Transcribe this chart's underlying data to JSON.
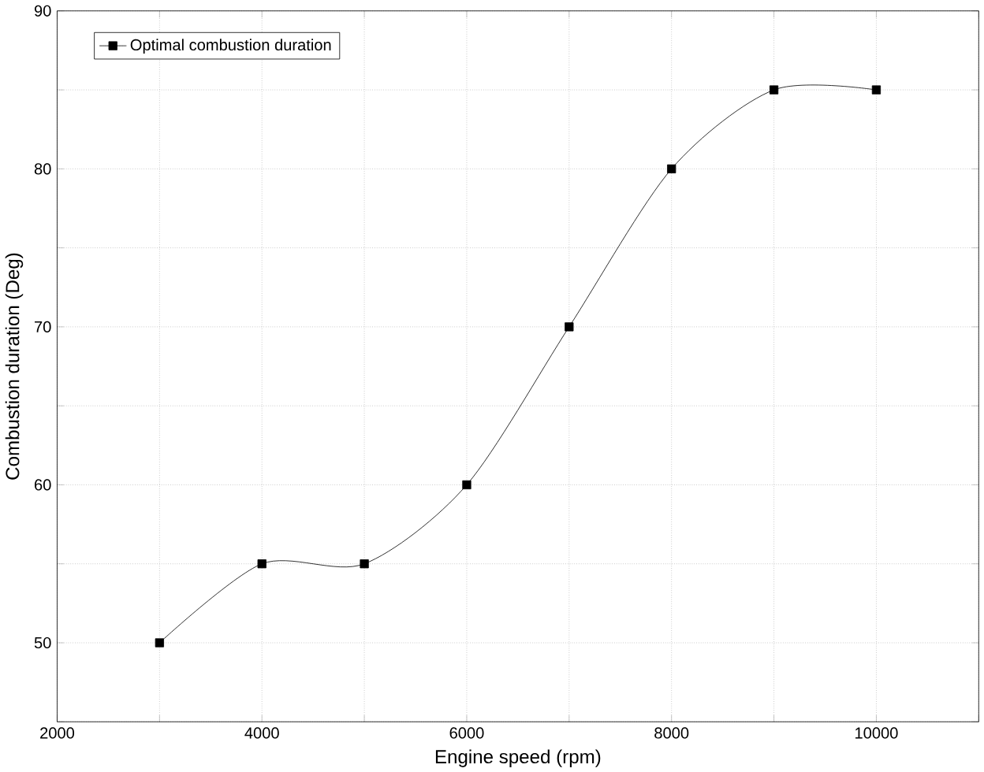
{
  "chart_data": {
    "type": "line",
    "xlabel": "Engine speed (rpm)",
    "ylabel": "Combustion duration (Deg)",
    "x": [
      3000,
      4000,
      5000,
      6000,
      7000,
      8000,
      9000,
      10000
    ],
    "series": [
      {
        "name": "Optimal combustion duration",
        "color": "#000000",
        "values": [
          50,
          55,
          55,
          60,
          70,
          80,
          85,
          85
        ]
      }
    ],
    "xlim": [
      2000,
      11000
    ],
    "xticks": [
      2000,
      {
        "value": 3000,
        "label": null
      },
      4000,
      {
        "value": 5000,
        "label": null
      },
      6000,
      {
        "value": 7000,
        "label": null
      },
      8000,
      {
        "value": 9000,
        "label": null
      },
      10000,
      {
        "value": 11000,
        "label": null
      }
    ],
    "ylim": [
      45,
      90
    ],
    "yticks": [
      {
        "value": 45,
        "label": null
      },
      50,
      {
        "value": 55,
        "label": null
      },
      60,
      {
        "value": 65,
        "label": null
      },
      70,
      {
        "value": 75,
        "label": null
      },
      80,
      {
        "value": 85,
        "label": null
      },
      90
    ],
    "grid": true,
    "legend": "top left",
    "marker": "square",
    "line_style": "solid"
  }
}
